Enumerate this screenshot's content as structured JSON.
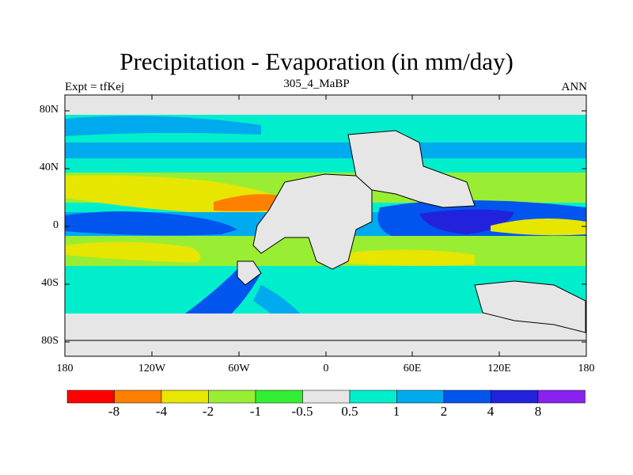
{
  "title": "Precipitation - Evaporation (in mm/day)",
  "subtitle": "305_4_MaBP",
  "left_label": "Expt = tfKej",
  "right_label": "ANN",
  "lat_ticks": [
    "80N",
    "40N",
    "0",
    "40S",
    "80S"
  ],
  "lon_ticks": [
    "180",
    "120W",
    "60W",
    "0",
    "60E",
    "120E",
    "180"
  ],
  "colorbar": {
    "colors": [
      "#ff0000",
      "#ff7f00",
      "#e6e600",
      "#99ee33",
      "#33ee33",
      "#e6e6e6",
      "#00eecc",
      "#00aaee",
      "#0055ee",
      "#2222dd",
      "#8822ee"
    ],
    "labels": [
      "-8",
      "-4",
      "-2",
      "-1",
      "-0.5",
      "0.5",
      "1",
      "2",
      "4",
      "8"
    ]
  },
  "colors": {
    "land": "#e6e6e6",
    "ocean_default": "#00eecc",
    "outline": "#000000"
  }
}
